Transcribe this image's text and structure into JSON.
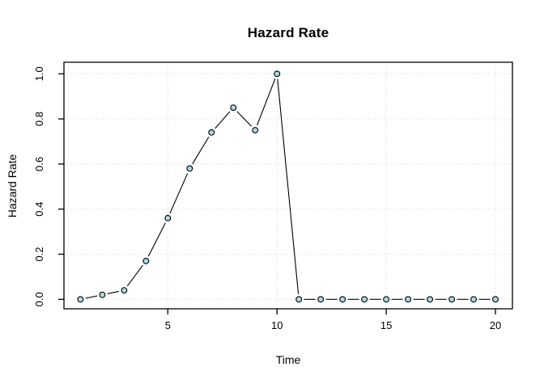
{
  "chart_data": {
    "type": "line",
    "style": "points-and-segments",
    "marker": "circle",
    "title": "Hazard Rate",
    "xlabel": "Time",
    "ylabel": "Hazard Rate",
    "x": [
      1,
      2,
      3,
      4,
      5,
      6,
      7,
      8,
      9,
      10,
      11,
      12,
      13,
      14,
      15,
      16,
      17,
      18,
      19,
      20
    ],
    "values": [
      0.0,
      0.02,
      0.04,
      0.17,
      0.36,
      0.58,
      0.74,
      0.85,
      0.75,
      1.0,
      0.0,
      0.0,
      0.0,
      0.0,
      0.0,
      0.0,
      0.0,
      0.0,
      0.0,
      0.0
    ],
    "x_ticks": [
      5,
      10,
      15,
      20
    ],
    "x_tick_labels": [
      "5",
      "10",
      "15",
      "20"
    ],
    "y_ticks": [
      0.0,
      0.2,
      0.4,
      0.6,
      0.8,
      1.0
    ],
    "y_tick_labels": [
      "0.0",
      "0.2",
      "0.4",
      "0.6",
      "0.8",
      "1.0"
    ],
    "xlim": [
      0.24,
      20.76
    ],
    "ylim": [
      -0.04,
      1.04
    ],
    "grid": true,
    "grid_style": "dotted",
    "legend_position": "none",
    "colors": {
      "marker_fill": "#ADD8E6",
      "marker_border": "#000000",
      "line": "#000000",
      "grid": "#D3D3D3",
      "axis": "#000000",
      "background": "#FFFFFF",
      "text": "#000000"
    }
  }
}
